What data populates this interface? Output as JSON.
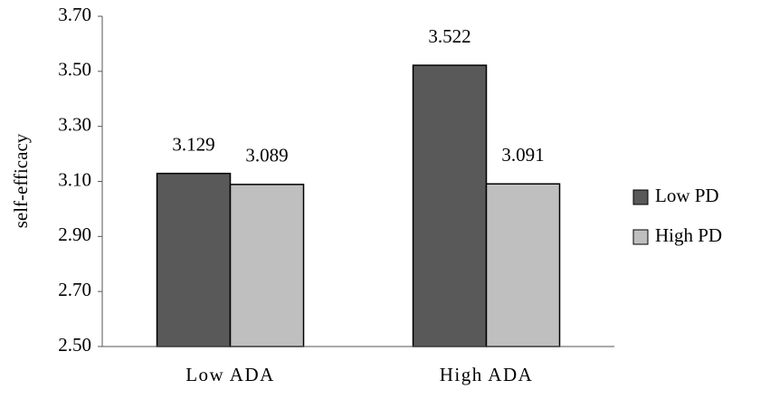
{
  "chart_data": {
    "type": "bar",
    "y_label": "self-efficacy",
    "categories": [
      "Low ADA",
      "High ADA"
    ],
    "series": [
      {
        "name": "Low PD",
        "color": "#595959",
        "values": [
          3.129,
          3.522
        ]
      },
      {
        "name": "High PD",
        "color": "#bfbfbf",
        "values": [
          3.089,
          3.091
        ]
      }
    ],
    "ylim": [
      2.5,
      3.7
    ],
    "yticks": [
      {
        "value": 2.5,
        "label": "2.50"
      },
      {
        "value": 2.7,
        "label": "2.70"
      },
      {
        "value": 2.9,
        "label": "2.90"
      },
      {
        "value": 3.1,
        "label": "3.10"
      },
      {
        "value": 3.3,
        "label": "3.30"
      },
      {
        "value": 3.5,
        "label": "3.50"
      },
      {
        "value": 3.7,
        "label": "3.70"
      }
    ],
    "grid": false,
    "legend": "right"
  }
}
